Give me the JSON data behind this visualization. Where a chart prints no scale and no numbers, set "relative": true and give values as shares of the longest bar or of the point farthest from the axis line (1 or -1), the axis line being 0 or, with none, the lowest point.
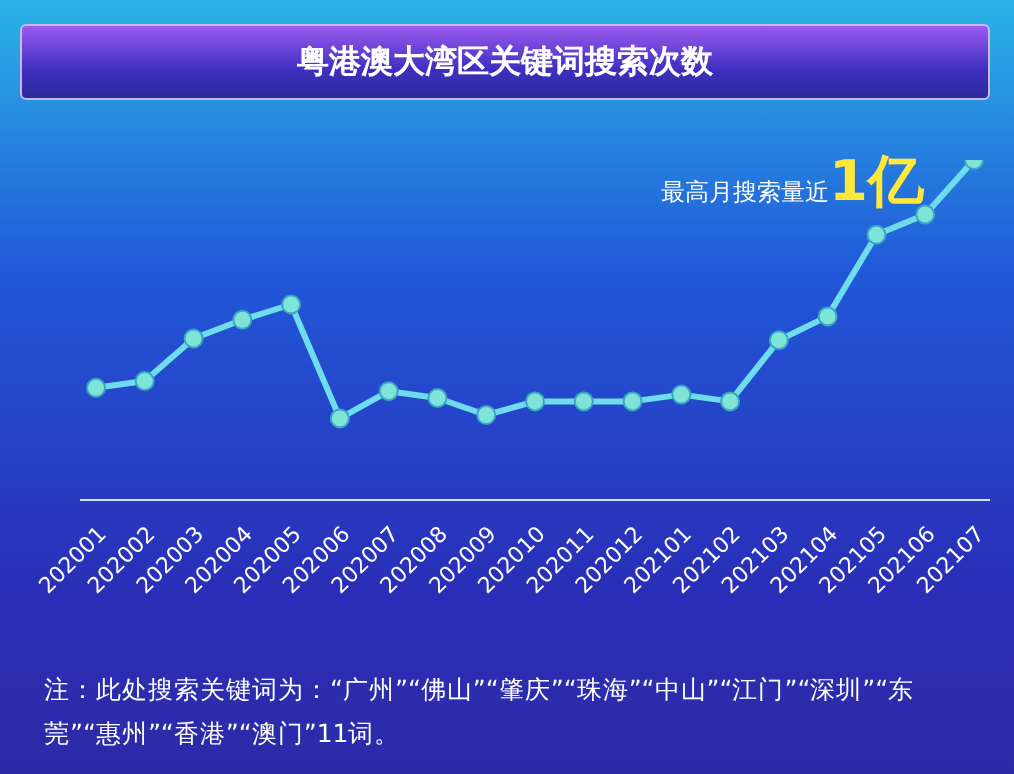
{
  "chart_data": {
    "type": "line",
    "title": "粤港澳大湾区关键词搜索次数",
    "relative": true,
    "categories": [
      "202001",
      "202002",
      "202003",
      "202004",
      "202005",
      "202006",
      "202007",
      "202008",
      "202009",
      "202010",
      "202011",
      "202012",
      "202101",
      "202102",
      "202103",
      "202104",
      "202105",
      "202106",
      "202107"
    ],
    "series": [
      {
        "color": "#6fdcec",
        "values": [
          0.33,
          0.35,
          0.475,
          0.53,
          0.575,
          0.24,
          0.32,
          0.3,
          0.25,
          0.29,
          0.29,
          0.29,
          0.31,
          0.29,
          0.47,
          0.54,
          0.78,
          0.84,
          1
        ]
      }
    ],
    "marker": "circle",
    "grid": false,
    "legend": false,
    "annotations": [
      "最高月搜索量近1亿",
      "注：此处搜索关键词为：“广州”“佛山”“肇庆”“珠海”“中山”“江门”“深圳”“东莞”“惠州”“香港”“澳门”11词。"
    ]
  }
}
